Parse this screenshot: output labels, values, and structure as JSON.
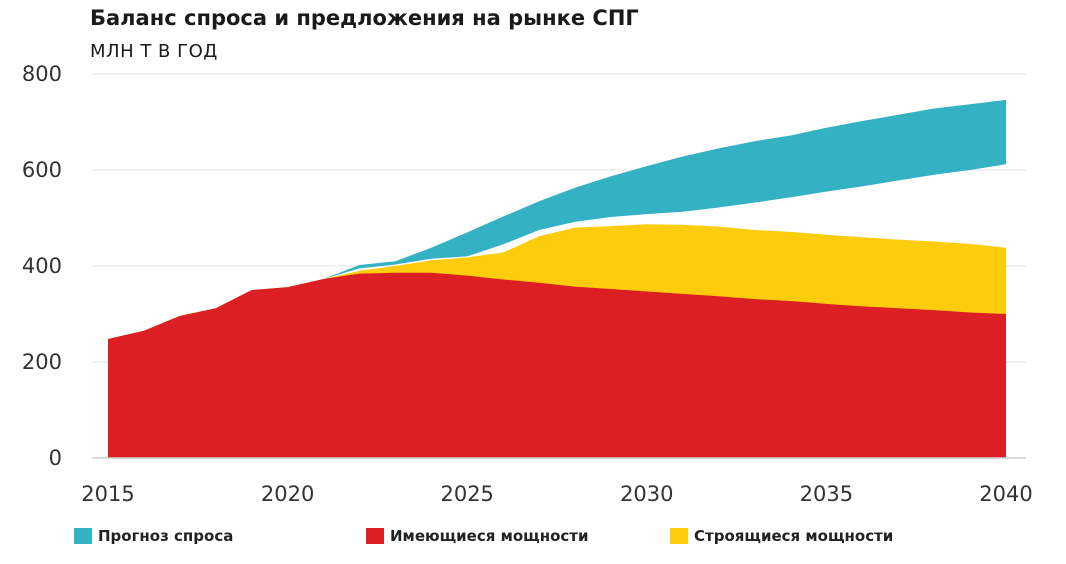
{
  "chart_data": {
    "type": "area",
    "title": "Баланс спроса и предложения на рынке СПГ",
    "subtitle": "МЛН Т В ГОД",
    "ylim": [
      0,
      800
    ],
    "xlim": [
      2015,
      2040
    ],
    "y_ticks": [
      0,
      200,
      400,
      600,
      800
    ],
    "x_ticks": [
      2015,
      2020,
      2025,
      2030,
      2035,
      2040
    ],
    "grid": "horizontal",
    "legend_position": "bottom",
    "x": [
      2015,
      2016,
      2017,
      2018,
      2019,
      2020,
      2021,
      2022,
      2023,
      2024,
      2025,
      2026,
      2027,
      2028,
      2029,
      2030,
      2031,
      2032,
      2033,
      2034,
      2035,
      2036,
      2037,
      2038,
      2039,
      2040
    ],
    "series": [
      {
        "name": "Прогноз спроса",
        "color": "#35b1c4",
        "values_upper": [
          248,
          265,
          296,
          312,
          350,
          356,
          373,
          402,
          410,
          438,
          470,
          503,
          535,
          563,
          587,
          608,
          628,
          645,
          660,
          672,
          688,
          702,
          715,
          728,
          737,
          746
        ],
        "values_lower": [
          248,
          265,
          296,
          312,
          350,
          356,
          373,
          395,
          403,
          415,
          420,
          445,
          475,
          492,
          502,
          508,
          513,
          522,
          532,
          543,
          555,
          566,
          578,
          590,
          600,
          612
        ]
      },
      {
        "name": "Имеющиеся мощности",
        "color": "#db1f24",
        "values": [
          248,
          265,
          296,
          312,
          350,
          356,
          373,
          384,
          386,
          386,
          380,
          372,
          365,
          357,
          352,
          347,
          342,
          337,
          331,
          327,
          321,
          316,
          312,
          308,
          303,
          300
        ]
      },
      {
        "name": "Строящиеся мощности",
        "color": "#fdcc0d",
        "values_total": [
          248,
          265,
          296,
          312,
          350,
          356,
          373,
          390,
          400,
          412,
          418,
          428,
          462,
          480,
          483,
          487,
          486,
          482,
          475,
          471,
          465,
          460,
          455,
          451,
          446,
          438
        ]
      }
    ]
  }
}
